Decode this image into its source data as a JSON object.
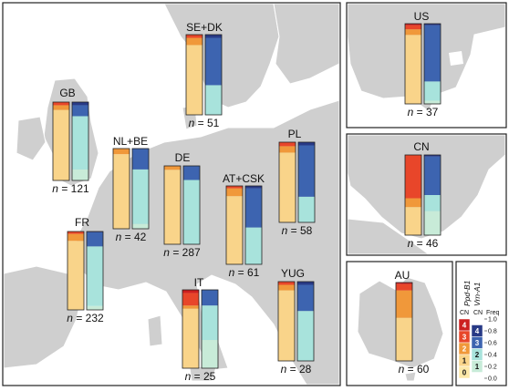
{
  "colors": {
    "ppd": [
      "#fde8a8",
      "#f9d48a",
      "#f0983a",
      "#e8462a",
      "#cc1f1f"
    ],
    "vrn": [
      "#eef7d2",
      "#c8ebd8",
      "#a8e3dc",
      "#3d64b0",
      "#283a86"
    ]
  },
  "legend": {
    "title_1": "Ppd-B1",
    "title_2": "Vrn-A1",
    "col_cn": "CN",
    "col_cn2": "CN",
    "col_freq": "Freq",
    "cn_values": [
      "4",
      "3",
      "2",
      "1",
      "0"
    ],
    "cn2_values": [
      "4",
      "3",
      "2",
      "1"
    ],
    "freq_ticks": [
      "1.0",
      "0.8",
      "0.6",
      "0.4",
      "0.2",
      "0.0"
    ]
  },
  "regions": [
    {
      "id": "se-dk",
      "label": "SE+DK",
      "n_prefix": "n",
      "n_value": "= 51",
      "ppd": [
        {
          "cn": 1,
          "f": 0.87
        },
        {
          "cn": 2,
          "f": 0.09
        },
        {
          "cn": 3,
          "f": 0.04
        }
      ],
      "vrn": [
        {
          "cn": 2,
          "f": 0.37
        },
        {
          "cn": 3,
          "f": 0.59
        },
        {
          "cn": 4,
          "f": 0.04
        }
      ]
    },
    {
      "id": "gb",
      "label": "GB",
      "n_prefix": "n",
      "n_value": "= 121",
      "ppd": [
        {
          "cn": 1,
          "f": 0.9
        },
        {
          "cn": 2,
          "f": 0.06
        },
        {
          "cn": 3,
          "f": 0.04
        }
      ],
      "vrn": [
        {
          "cn": 1,
          "f": 0.14
        },
        {
          "cn": 2,
          "f": 0.68
        },
        {
          "cn": 3,
          "f": 0.14
        },
        {
          "cn": 4,
          "f": 0.04
        }
      ]
    },
    {
      "id": "nl-be",
      "label": "NL+BE",
      "n_prefix": "n",
      "n_value": "= 42",
      "ppd": [
        {
          "cn": 1,
          "f": 0.93
        },
        {
          "cn": 2,
          "f": 0.07
        }
      ],
      "vrn": [
        {
          "cn": 1,
          "f": 0.06
        },
        {
          "cn": 2,
          "f": 0.68
        },
        {
          "cn": 3,
          "f": 0.26
        }
      ]
    },
    {
      "id": "de",
      "label": "DE",
      "n_prefix": "n",
      "n_value": "= 287",
      "ppd": [
        {
          "cn": 1,
          "f": 0.95
        },
        {
          "cn": 2,
          "f": 0.05
        }
      ],
      "vrn": [
        {
          "cn": 2,
          "f": 0.82
        },
        {
          "cn": 3,
          "f": 0.18
        }
      ]
    },
    {
      "id": "pl",
      "label": "PL",
      "n_prefix": "n",
      "n_value": "= 58",
      "ppd": [
        {
          "cn": 1,
          "f": 0.87
        },
        {
          "cn": 2,
          "f": 0.08
        },
        {
          "cn": 3,
          "f": 0.05
        }
      ],
      "vrn": [
        {
          "cn": 2,
          "f": 0.32
        },
        {
          "cn": 3,
          "f": 0.64
        },
        {
          "cn": 4,
          "f": 0.04
        }
      ]
    },
    {
      "id": "at-csk",
      "label": "AT+CSK",
      "n_prefix": "n",
      "n_value": "= 61",
      "ppd": [
        {
          "cn": 1,
          "f": 0.87
        },
        {
          "cn": 2,
          "f": 0.1
        },
        {
          "cn": 3,
          "f": 0.03
        }
      ],
      "vrn": [
        {
          "cn": 2,
          "f": 0.47
        },
        {
          "cn": 3,
          "f": 0.5
        },
        {
          "cn": 4,
          "f": 0.03
        }
      ]
    },
    {
      "id": "fr",
      "label": "FR",
      "n_prefix": "n",
      "n_value": "= 232",
      "ppd": [
        {
          "cn": 1,
          "f": 0.88
        },
        {
          "cn": 2,
          "f": 0.09
        },
        {
          "cn": 3,
          "f": 0.03
        }
      ],
      "vrn": [
        {
          "cn": 1,
          "f": 0.05
        },
        {
          "cn": 2,
          "f": 0.76
        },
        {
          "cn": 3,
          "f": 0.18
        },
        {
          "cn": 4,
          "f": 0.01
        }
      ]
    },
    {
      "id": "it",
      "label": "IT",
      "n_prefix": "n",
      "n_value": "= 25",
      "ppd": [
        {
          "cn": 1,
          "f": 0.76
        },
        {
          "cn": 2,
          "f": 0.04
        },
        {
          "cn": 3,
          "f": 0.16
        },
        {
          "cn": 4,
          "f": 0.04
        }
      ],
      "vrn": [
        {
          "cn": 1,
          "f": 0.36
        },
        {
          "cn": 2,
          "f": 0.44
        },
        {
          "cn": 3,
          "f": 0.2
        }
      ]
    },
    {
      "id": "yug",
      "label": "YUG",
      "n_prefix": "n",
      "n_value": "= 28",
      "ppd": [
        {
          "cn": 1,
          "f": 0.89
        },
        {
          "cn": 2,
          "f": 0.07
        },
        {
          "cn": 3,
          "f": 0.04
        }
      ],
      "vrn": [
        {
          "cn": 2,
          "f": 0.63
        },
        {
          "cn": 3,
          "f": 0.33
        },
        {
          "cn": 4,
          "f": 0.04
        }
      ]
    },
    {
      "id": "us",
      "label": "US",
      "n_prefix": "n",
      "n_value": "= 37",
      "ppd": [
        {
          "cn": 1,
          "f": 0.86
        },
        {
          "cn": 2,
          "f": 0.07
        },
        {
          "cn": 3,
          "f": 0.05
        },
        {
          "cn": 4,
          "f": 0.02
        }
      ],
      "vrn": [
        {
          "cn": 1,
          "f": 0.04
        },
        {
          "cn": 2,
          "f": 0.24
        },
        {
          "cn": 3,
          "f": 0.7
        },
        {
          "cn": 4,
          "f": 0.02
        }
      ]
    },
    {
      "id": "cn",
      "label": "CN",
      "n_prefix": "n",
      "n_value": "= 46",
      "ppd": [
        {
          "cn": 1,
          "f": 0.35
        },
        {
          "cn": 2,
          "f": 0.11
        },
        {
          "cn": 3,
          "f": 0.54
        }
      ],
      "vrn": [
        {
          "cn": 1,
          "f": 0.3
        },
        {
          "cn": 2,
          "f": 0.2
        },
        {
          "cn": 3,
          "f": 0.48
        },
        {
          "cn": 4,
          "f": 0.02
        }
      ]
    },
    {
      "id": "au",
      "label": "AU",
      "n_prefix": "n",
      "n_value": "= 60",
      "ppd": [
        {
          "cn": 1,
          "f": 0.55
        },
        {
          "cn": 2,
          "f": 0.35
        },
        {
          "cn": 3,
          "f": 0.08
        },
        {
          "cn": 4,
          "f": 0.02
        }
      ],
      "vrn": []
    }
  ]
}
